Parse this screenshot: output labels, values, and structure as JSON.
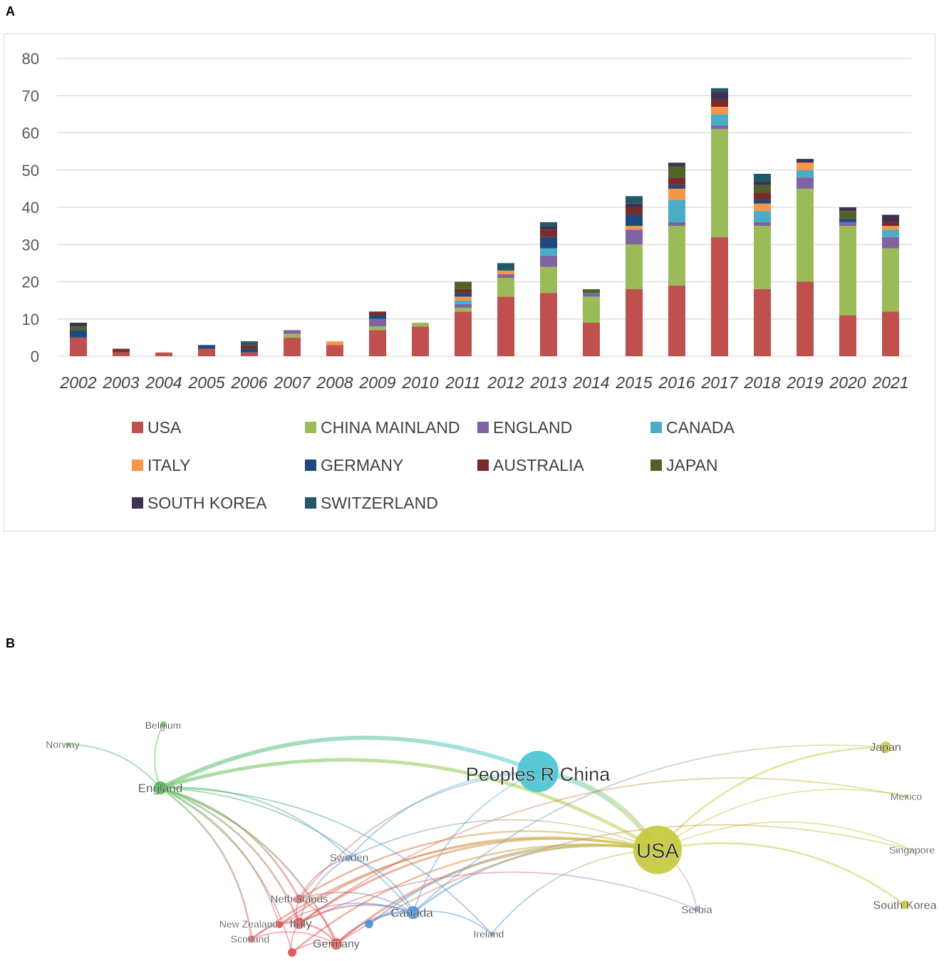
{
  "panels": {
    "a_label": "A",
    "b_label": "B"
  },
  "chart_data": [
    {
      "type": "bar",
      "stacked": true,
      "title": "",
      "xlabel": "",
      "ylabel": "",
      "ylim": [
        0,
        80
      ],
      "yticks": [
        0,
        10,
        20,
        30,
        40,
        50,
        60,
        70,
        80
      ],
      "grid": true,
      "legend_position": "bottom",
      "categories": [
        "2002",
        "2003",
        "2004",
        "2005",
        "2006",
        "2007",
        "2008",
        "2009",
        "2010",
        "2011",
        "2012",
        "2013",
        "2014",
        "2015",
        "2016",
        "2017",
        "2018",
        "2019",
        "2020",
        "2021"
      ],
      "series": [
        {
          "name": "USA",
          "color": "#c0504d",
          "values": [
            5,
            1,
            1,
            2,
            1,
            5,
            3,
            7,
            8,
            12,
            16,
            17,
            9,
            18,
            19,
            32,
            18,
            20,
            11,
            12
          ]
        },
        {
          "name": "CHINA MAINLAND",
          "color": "#9bbb59",
          "values": [
            0,
            0,
            0,
            0,
            0,
            1,
            0,
            1,
            1,
            1,
            5,
            7,
            7,
            12,
            16,
            29,
            17,
            25,
            24,
            17
          ]
        },
        {
          "name": "ENGLAND",
          "color": "#8064a2",
          "values": [
            0,
            0,
            0,
            0,
            0,
            1,
            0,
            2,
            0,
            1,
            1,
            3,
            1,
            4,
            1,
            1,
            1,
            3,
            1,
            3
          ]
        },
        {
          "name": "CANADA",
          "color": "#4bacc6",
          "values": [
            0,
            0,
            0,
            0,
            0,
            0,
            0,
            0,
            0,
            1,
            0,
            2,
            0,
            0,
            6,
            3,
            3,
            2,
            0,
            2
          ]
        },
        {
          "name": "ITALY",
          "color": "#f79646",
          "values": [
            0,
            0,
            0,
            0,
            0,
            0,
            1,
            0,
            0,
            1,
            1,
            0,
            0,
            1,
            3,
            2,
            2,
            2,
            0,
            1
          ]
        },
        {
          "name": "GERMANY",
          "color": "#1f497d",
          "values": [
            2,
            0,
            0,
            1,
            1,
            0,
            0,
            1,
            0,
            1,
            0,
            3,
            0,
            3,
            1,
            0,
            1,
            0,
            1,
            0
          ]
        },
        {
          "name": "AUSTRALIA",
          "color": "#772c2a",
          "values": [
            0,
            1,
            0,
            0,
            1,
            0,
            0,
            1,
            0,
            1,
            0,
            2,
            0,
            2,
            2,
            2,
            2,
            0,
            0,
            1
          ]
        },
        {
          "name": "JAPAN",
          "color": "#4f6228",
          "values": [
            1,
            0,
            0,
            0,
            0,
            0,
            0,
            0,
            0,
            2,
            0,
            0,
            1,
            0,
            3,
            0,
            2,
            0,
            2,
            0
          ]
        },
        {
          "name": "SOUTH KOREA",
          "color": "#403152",
          "values": [
            1,
            0,
            0,
            0,
            0,
            0,
            0,
            0,
            0,
            0,
            0,
            1,
            0,
            1,
            1,
            2,
            1,
            1,
            1,
            2
          ]
        },
        {
          "name": "SWITZERLAND",
          "color": "#215968",
          "values": [
            0,
            0,
            0,
            0,
            1,
            0,
            0,
            0,
            0,
            0,
            2,
            1,
            0,
            2,
            0,
            1,
            2,
            0,
            0,
            0
          ]
        }
      ]
    },
    {
      "type": "network",
      "title": "",
      "nodes": [
        {
          "id": "china",
          "label": "Peoples R China",
          "cluster": "cyan",
          "size": 29
        },
        {
          "id": "usa",
          "label": "USA",
          "cluster": "yellow",
          "size": 34
        },
        {
          "id": "england",
          "label": "England",
          "cluster": "green",
          "size": 9
        },
        {
          "id": "belgium",
          "label": "Belgium",
          "cluster": "green",
          "size": 4
        },
        {
          "id": "norway",
          "label": "Norway",
          "cluster": "green",
          "size": 3
        },
        {
          "id": "japan",
          "label": "Japan",
          "cluster": "yellow",
          "size": 8
        },
        {
          "id": "mexico",
          "label": "Mexico",
          "cluster": "yellow",
          "size": 3
        },
        {
          "id": "singapore",
          "label": "Singapore",
          "cluster": "yellow",
          "size": 3
        },
        {
          "id": "skorea",
          "label": "South Korea",
          "cluster": "yellow",
          "size": 6
        },
        {
          "id": "serbia",
          "label": "Serbia",
          "cluster": "purple",
          "size": 4
        },
        {
          "id": "sweden",
          "label": "Sweden",
          "cluster": "blue",
          "size": 4
        },
        {
          "id": "canada",
          "label": "Canada",
          "cluster": "blue",
          "size": 9
        },
        {
          "id": "ireland",
          "label": "Ireland",
          "cluster": "blue",
          "size": 3
        },
        {
          "id": "blue2",
          "label": "",
          "cluster": "blue",
          "size": 6
        },
        {
          "id": "netherlands",
          "label": "Netherlands",
          "cluster": "red",
          "size": 6
        },
        {
          "id": "italy",
          "label": "Italy",
          "cluster": "red",
          "size": 8
        },
        {
          "id": "nz",
          "label": "New Zealand",
          "cluster": "red",
          "size": 5
        },
        {
          "id": "germany",
          "label": "Germany",
          "cluster": "red",
          "size": 8
        },
        {
          "id": "scotland",
          "label": "Scotland",
          "cluster": "red",
          "size": 5
        },
        {
          "id": "red5",
          "label": "",
          "cluster": "red",
          "size": 6
        }
      ],
      "cluster_colors": {
        "cyan": "#4bc4d4",
        "yellow": "#c5c93c",
        "green": "#47b84a",
        "purple": "#b58ad6",
        "blue": "#4a90d9",
        "red": "#e05353"
      },
      "edges": [
        [
          "england",
          "china",
          6
        ],
        [
          "england",
          "usa",
          5
        ],
        [
          "england",
          "belgium",
          1
        ],
        [
          "england",
          "norway",
          1
        ],
        [
          "england",
          "netherlands",
          2
        ],
        [
          "england",
          "italy",
          2
        ],
        [
          "england",
          "germany",
          2
        ],
        [
          "england",
          "scotland",
          2
        ],
        [
          "england",
          "nz",
          1
        ],
        [
          "england",
          "canada",
          1
        ],
        [
          "england",
          "sweden",
          1
        ],
        [
          "england",
          "red5",
          1
        ],
        [
          "england",
          "ireland",
          1
        ],
        [
          "china",
          "usa",
          8
        ],
        [
          "china",
          "sweden",
          1
        ],
        [
          "china",
          "canada",
          1
        ],
        [
          "china",
          "netherlands",
          1
        ],
        [
          "usa",
          "japan",
          2
        ],
        [
          "usa",
          "mexico",
          1
        ],
        [
          "usa",
          "singapore",
          1
        ],
        [
          "usa",
          "skorea",
          2
        ],
        [
          "usa",
          "serbia",
          1
        ],
        [
          "usa",
          "sweden",
          1
        ],
        [
          "usa",
          "canada",
          2
        ],
        [
          "usa",
          "netherlands",
          2
        ],
        [
          "usa",
          "italy",
          3
        ],
        [
          "usa",
          "germany",
          3
        ],
        [
          "usa",
          "scotland",
          2
        ],
        [
          "usa",
          "nz",
          2
        ],
        [
          "usa",
          "ireland",
          1
        ],
        [
          "usa",
          "red5",
          2
        ],
        [
          "usa",
          "blue2",
          2
        ],
        [
          "japan",
          "canada",
          1
        ],
        [
          "mexico",
          "italy",
          1
        ],
        [
          "singapore",
          "germany",
          1
        ],
        [
          "canada",
          "italy",
          2
        ],
        [
          "canada",
          "germany",
          2
        ],
        [
          "canada",
          "netherlands",
          1
        ],
        [
          "canada",
          "sweden",
          1
        ],
        [
          "canada",
          "blue2",
          1
        ],
        [
          "canada",
          "nz",
          1
        ],
        [
          "canada",
          "ireland",
          1
        ],
        [
          "netherlands",
          "italy",
          1
        ],
        [
          "netherlands",
          "germany",
          1
        ],
        [
          "netherlands",
          "sweden",
          1
        ],
        [
          "italy",
          "germany",
          2
        ],
        [
          "italy",
          "scotland",
          1
        ],
        [
          "italy",
          "nz",
          1
        ],
        [
          "germany",
          "scotland",
          1
        ],
        [
          "red5",
          "italy",
          1
        ],
        [
          "red5",
          "germany",
          1
        ],
        [
          "sweden",
          "italy",
          1
        ],
        [
          "serbia",
          "italy",
          1
        ]
      ]
    }
  ]
}
